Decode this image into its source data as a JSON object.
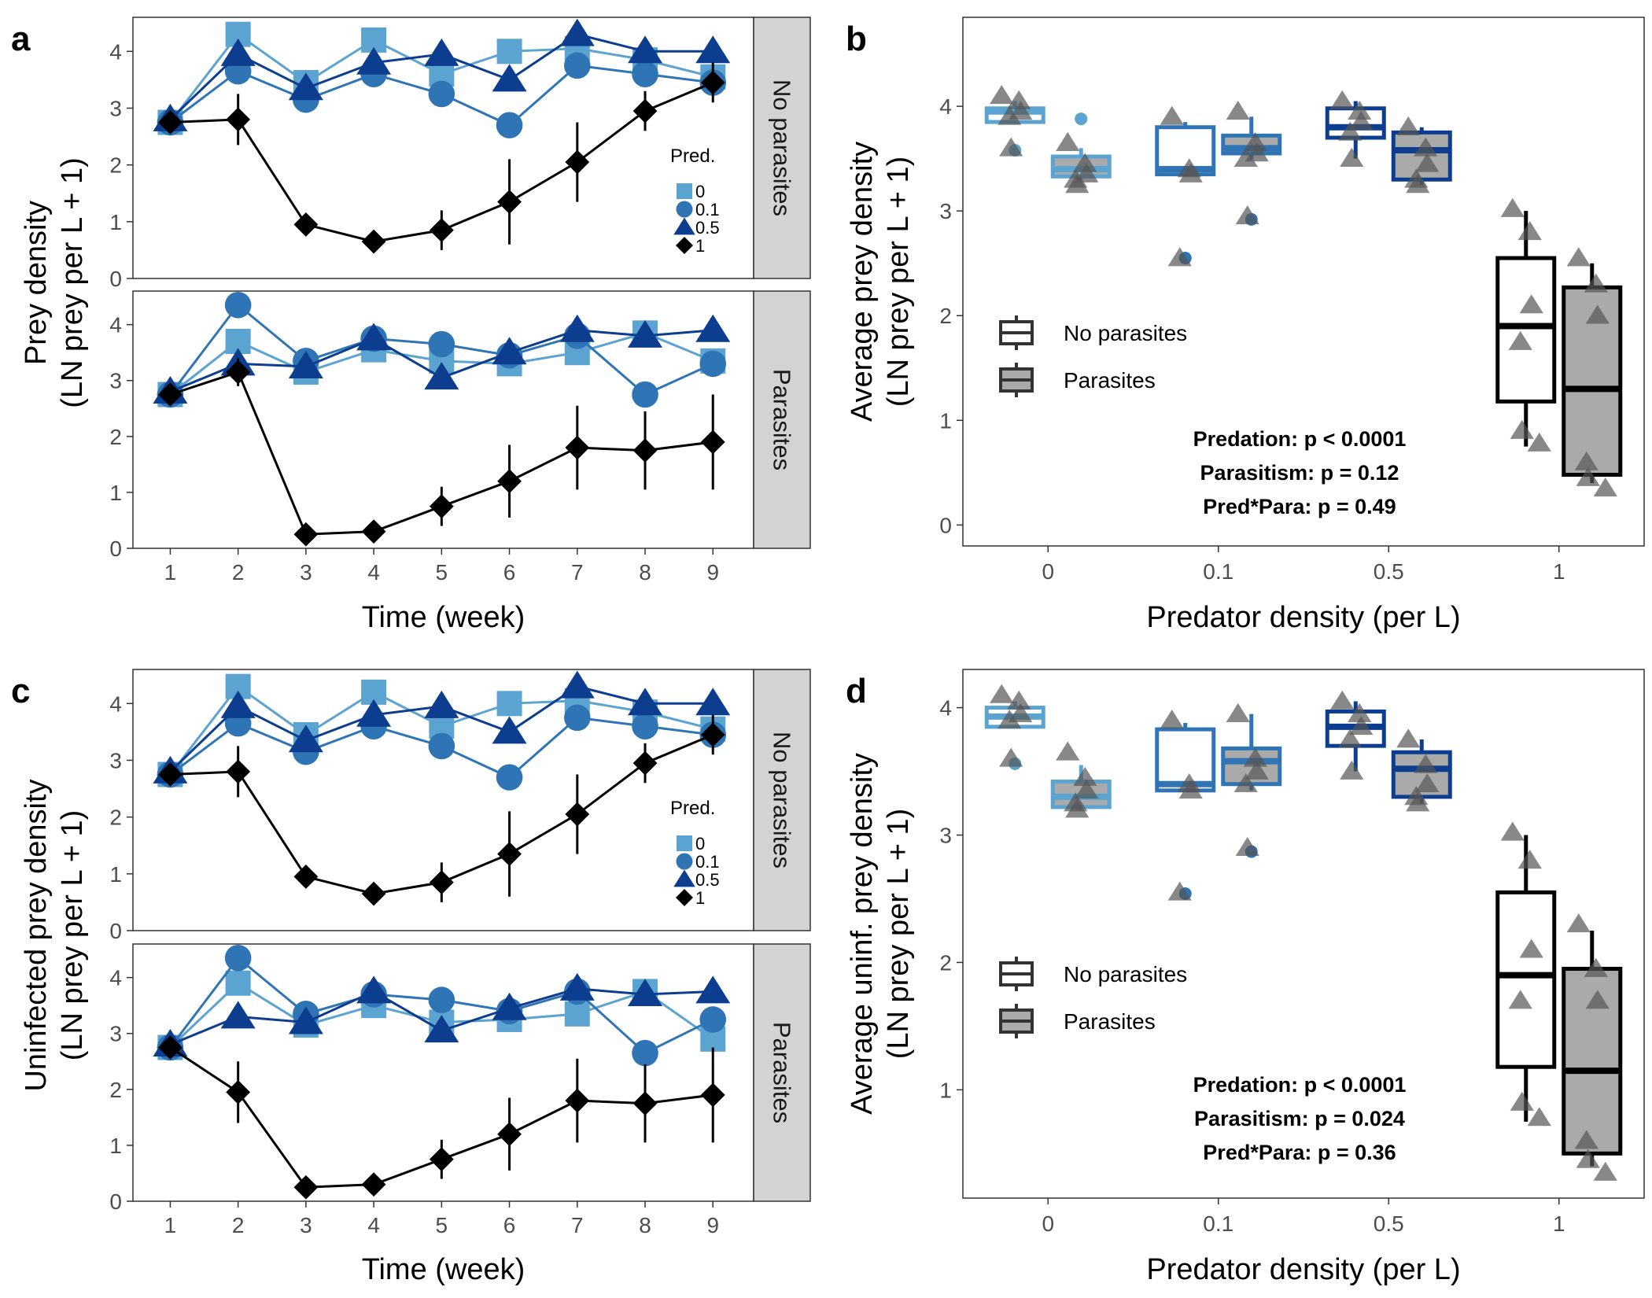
{
  "colors": {
    "pred_0": "#5ba3d0",
    "pred_0.1": "#2f74b5",
    "pred_0.5": "#0d3d8f",
    "pred_1": "#000000",
    "strip": "#d3d3d3",
    "box_parasites": "#aaaaaa",
    "jitter_point": "#555555"
  },
  "chart_data": [
    {
      "panel": "a",
      "type": "line",
      "ylabel": [
        "Prey density",
        "(LN prey per L + 1)"
      ],
      "xlabel": "Time (week)",
      "x": [
        1,
        2,
        3,
        4,
        5,
        6,
        7,
        8,
        9
      ],
      "ylim": [
        0,
        4.6
      ],
      "yticks": [
        0,
        1,
        2,
        3,
        4
      ],
      "legend": {
        "title": "Pred.",
        "entries": [
          "0",
          "0.1",
          "0.5",
          "1"
        ],
        "placement": "right-middle of top facet"
      },
      "facets": [
        {
          "strip": "No parasites",
          "series": [
            {
              "name": "0",
              "values": [
                2.75,
                4.3,
                3.45,
                4.2,
                3.6,
                4.0,
                4.05,
                3.85,
                3.55
              ]
            },
            {
              "name": "0.1",
              "values": [
                2.75,
                3.65,
                3.15,
                3.6,
                3.25,
                2.7,
                3.75,
                3.6,
                3.45
              ]
            },
            {
              "name": "0.5",
              "values": [
                2.8,
                3.95,
                3.35,
                3.8,
                3.95,
                3.5,
                4.3,
                4.0,
                4.0
              ]
            },
            {
              "name": "1",
              "values": [
                2.75,
                2.8,
                0.95,
                0.65,
                0.85,
                1.35,
                2.05,
                2.95,
                3.45
              ],
              "err": [
                0.12,
                0.45,
                0.12,
                0.15,
                0.35,
                0.75,
                0.7,
                0.35,
                0.35
              ]
            }
          ]
        },
        {
          "strip": "Parasites",
          "series": [
            {
              "name": "0",
              "values": [
                2.75,
                3.7,
                3.15,
                3.55,
                3.35,
                3.3,
                3.5,
                3.85,
                3.35
              ]
            },
            {
              "name": "0.1",
              "values": [
                2.75,
                4.35,
                3.35,
                3.75,
                3.65,
                3.45,
                3.8,
                2.75,
                3.3
              ]
            },
            {
              "name": "0.5",
              "values": [
                2.8,
                3.3,
                3.25,
                3.75,
                3.05,
                3.5,
                3.9,
                3.8,
                3.9
              ]
            },
            {
              "name": "1",
              "values": [
                2.75,
                3.15,
                0.25,
                0.3,
                0.75,
                1.2,
                1.8,
                1.75,
                1.9
              ],
              "err": [
                0.12,
                0.25,
                0.1,
                0.1,
                0.35,
                0.65,
                0.75,
                0.7,
                0.85
              ]
            }
          ]
        }
      ]
    },
    {
      "panel": "b",
      "type": "box",
      "ylabel": [
        "Average prey density",
        "(LN prey per L + 1)"
      ],
      "xlabel": "Predator density (per L)",
      "categories": [
        "0",
        "0.1",
        "0.5",
        "1"
      ],
      "ylim": [
        -0.2,
        4.85
      ],
      "yticks": [
        0,
        1,
        2,
        3,
        4
      ],
      "legend": {
        "entries": [
          "No parasites",
          "Parasites"
        ],
        "placement": "left-middle"
      },
      "annotations": [
        "Predation: p < 0.0001",
        "Parasitism: p = 0.12",
        "Pred*Para: p = 0.49"
      ],
      "boxes": [
        {
          "pred": "0",
          "group": "No parasites",
          "q1": 3.85,
          "median": 3.95,
          "q3": 3.98,
          "lo": 3.85,
          "hi": 4.05,
          "points": [
            4.1,
            4.05,
            3.95,
            3.9,
            3.6
          ],
          "outliers": [
            3.58
          ]
        },
        {
          "pred": "0",
          "group": "Parasites",
          "q1": 3.33,
          "median": 3.4,
          "q3": 3.52,
          "lo": 3.3,
          "hi": 3.6,
          "points": [
            3.65,
            3.45,
            3.35,
            3.3,
            3.25
          ],
          "outliers": [
            3.88
          ]
        },
        {
          "pred": "0.1",
          "group": "No parasites",
          "q1": 3.35,
          "median": 3.4,
          "q3": 3.8,
          "lo": 3.35,
          "hi": 3.85,
          "points": [
            3.9,
            3.4,
            3.35,
            2.55
          ],
          "outliers": [
            2.55
          ]
        },
        {
          "pred": "0.1",
          "group": "Parasites",
          "q1": 3.55,
          "median": 3.6,
          "q3": 3.72,
          "lo": 3.5,
          "hi": 3.9,
          "points": [
            3.95,
            3.65,
            3.55,
            3.5,
            2.95
          ],
          "outliers": [
            2.92
          ]
        },
        {
          "pred": "0.5",
          "group": "No parasites",
          "q1": 3.7,
          "median": 3.8,
          "q3": 3.98,
          "lo": 3.5,
          "hi": 4.05,
          "points": [
            4.05,
            3.95,
            3.85,
            3.75,
            3.5
          ]
        },
        {
          "pred": "0.5",
          "group": "Parasites",
          "q1": 3.3,
          "median": 3.58,
          "q3": 3.75,
          "lo": 3.25,
          "hi": 3.8,
          "points": [
            3.8,
            3.6,
            3.45,
            3.3,
            3.25
          ]
        },
        {
          "pred": "1",
          "group": "No parasites",
          "q1": 1.18,
          "median": 1.9,
          "q3": 2.55,
          "lo": 0.75,
          "hi": 3.0,
          "points": [
            3.02,
            2.8,
            2.1,
            1.75,
            0.9,
            0.78
          ]
        },
        {
          "pred": "1",
          "group": "Parasites",
          "q1": 0.48,
          "median": 1.3,
          "q3": 2.27,
          "lo": 0.4,
          "hi": 2.5,
          "points": [
            2.55,
            2.3,
            2.0,
            0.6,
            0.45,
            0.35
          ]
        }
      ]
    },
    {
      "panel": "c",
      "type": "line",
      "ylabel": [
        "Uninfected prey density",
        "(LN prey per L + 1)"
      ],
      "xlabel": "Time (week)",
      "x": [
        1,
        2,
        3,
        4,
        5,
        6,
        7,
        8,
        9
      ],
      "ylim": [
        0,
        4.6
      ],
      "yticks": [
        0,
        1,
        2,
        3,
        4
      ],
      "legend": {
        "title": "Pred.",
        "entries": [
          "0",
          "0.1",
          "0.5",
          "1"
        ],
        "placement": "right-middle of top facet"
      },
      "facets": [
        {
          "strip": "No parasites",
          "series": [
            {
              "name": "0",
              "values": [
                2.75,
                4.3,
                3.45,
                4.2,
                3.6,
                4.0,
                4.05,
                3.85,
                3.55
              ]
            },
            {
              "name": "0.1",
              "values": [
                2.75,
                3.65,
                3.15,
                3.6,
                3.25,
                2.7,
                3.75,
                3.6,
                3.45
              ]
            },
            {
              "name": "0.5",
              "values": [
                2.8,
                3.95,
                3.35,
                3.8,
                3.95,
                3.5,
                4.3,
                4.0,
                4.0
              ]
            },
            {
              "name": "1",
              "values": [
                2.75,
                2.8,
                0.95,
                0.65,
                0.85,
                1.35,
                2.05,
                2.95,
                3.45
              ],
              "err": [
                0.12,
                0.45,
                0.12,
                0.15,
                0.35,
                0.75,
                0.7,
                0.35,
                0.35
              ]
            }
          ]
        },
        {
          "strip": "Parasites",
          "series": [
            {
              "name": "0",
              "values": [
                2.75,
                3.9,
                3.15,
                3.5,
                3.2,
                3.25,
                3.35,
                3.75,
                2.9
              ]
            },
            {
              "name": "0.1",
              "values": [
                2.75,
                4.35,
                3.35,
                3.7,
                3.6,
                3.4,
                3.75,
                2.65,
                3.25
              ]
            },
            {
              "name": "0.5",
              "values": [
                2.8,
                3.3,
                3.2,
                3.75,
                3.05,
                3.45,
                3.8,
                3.7,
                3.75
              ]
            },
            {
              "name": "1",
              "values": [
                2.75,
                1.95,
                0.25,
                0.3,
                0.75,
                1.2,
                1.8,
                1.75,
                1.9
              ],
              "err": [
                0.12,
                0.55,
                0.1,
                0.1,
                0.35,
                0.65,
                0.75,
                0.7,
                0.85
              ]
            }
          ]
        }
      ]
    },
    {
      "panel": "d",
      "type": "box",
      "ylabel": [
        "Average uninf. prey density",
        "(LN prey per L + 1)"
      ],
      "xlabel": "Predator density (per L)",
      "categories": [
        "0",
        "0.1",
        "0.5",
        "1"
      ],
      "ylim": [
        0.15,
        4.3
      ],
      "yticks": [
        1,
        2,
        3,
        4
      ],
      "legend": {
        "entries": [
          "No parasites",
          "Parasites"
        ],
        "placement": "left-middle"
      },
      "annotations": [
        "Predation: p < 0.0001",
        "Parasitism: p = 0.024",
        "Pred*Para: p = 0.36"
      ],
      "boxes": [
        {
          "pred": "0",
          "group": "No parasites",
          "q1": 3.85,
          "median": 3.93,
          "q3": 4.0,
          "lo": 3.85,
          "hi": 4.05,
          "points": [
            4.1,
            4.05,
            3.95,
            3.9,
            3.6
          ],
          "outliers": [
            3.56
          ]
        },
        {
          "pred": "0",
          "group": "Parasites",
          "q1": 3.22,
          "median": 3.3,
          "q3": 3.42,
          "lo": 3.2,
          "hi": 3.55,
          "points": [
            3.65,
            3.45,
            3.35,
            3.25,
            3.2
          ]
        },
        {
          "pred": "0.1",
          "group": "No parasites",
          "q1": 3.35,
          "median": 3.4,
          "q3": 3.83,
          "lo": 3.35,
          "hi": 3.88,
          "points": [
            3.9,
            3.4,
            3.35,
            2.55
          ],
          "outliers": [
            2.54
          ]
        },
        {
          "pred": "0.1",
          "group": "Parasites",
          "q1": 3.4,
          "median": 3.58,
          "q3": 3.68,
          "lo": 3.35,
          "hi": 3.95,
          "points": [
            3.95,
            3.6,
            3.5,
            3.4,
            2.9
          ],
          "outliers": [
            2.87
          ]
        },
        {
          "pred": "0.5",
          "group": "No parasites",
          "q1": 3.7,
          "median": 3.85,
          "q3": 3.97,
          "lo": 3.5,
          "hi": 4.05,
          "points": [
            4.05,
            3.95,
            3.85,
            3.75,
            3.5
          ]
        },
        {
          "pred": "0.5",
          "group": "Parasites",
          "q1": 3.3,
          "median": 3.52,
          "q3": 3.65,
          "lo": 3.25,
          "hi": 3.75,
          "points": [
            3.75,
            3.55,
            3.4,
            3.3,
            3.25
          ]
        },
        {
          "pred": "1",
          "group": "No parasites",
          "q1": 1.18,
          "median": 1.9,
          "q3": 2.55,
          "lo": 0.75,
          "hi": 3.0,
          "points": [
            3.02,
            2.8,
            2.1,
            1.7,
            0.9,
            0.78
          ]
        },
        {
          "pred": "1",
          "group": "Parasites",
          "q1": 0.5,
          "median": 1.15,
          "q3": 1.95,
          "lo": 0.4,
          "hi": 2.25,
          "points": [
            2.3,
            1.95,
            1.7,
            0.6,
            0.45,
            0.35
          ]
        }
      ]
    }
  ]
}
